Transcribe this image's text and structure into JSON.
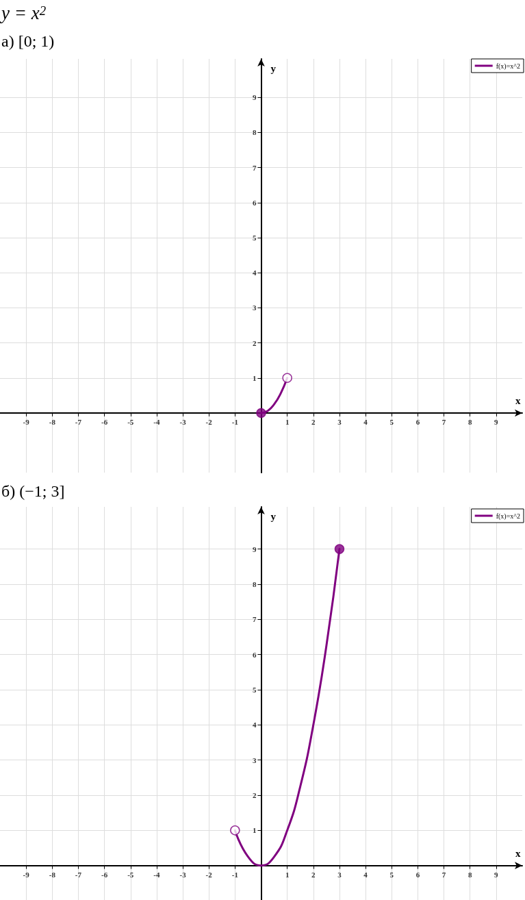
{
  "chart_data": [
    {
      "type": "line",
      "title": "y = x$^{2}$",
      "subtitle": "а) [0; 1)",
      "xlabel": "x",
      "ylabel": "y",
      "xlim": [
        -10,
        10
      ],
      "ylim": [
        -1.7,
        10.1
      ],
      "xticks": [
        -9,
        -8,
        -7,
        -6,
        -5,
        -4,
        -3,
        -2,
        -1,
        1,
        2,
        3,
        4,
        5,
        6,
        7,
        8,
        9
      ],
      "yticks": [
        1,
        2,
        3,
        4,
        5,
        6,
        7,
        8,
        9
      ],
      "grid": true,
      "legend": "top right",
      "line_style": "solid",
      "series": [
        {
          "type": "line",
          "name": "f(x)=x^2",
          "color": "#800080",
          "marker": "none",
          "x": [
            0,
            0.25,
            0.5,
            0.75,
            1
          ],
          "values": [
            0,
            0.06,
            0.25,
            0.56,
            1
          ]
        },
        {
          "type": "scatter",
          "color": "#800080",
          "marker": "circle",
          "x": [
            0
          ],
          "values": [
            0
          ]
        },
        {
          "type": "scatter",
          "color": "#ffffff",
          "marker": "circle",
          "x": [
            1
          ],
          "values": [
            1
          ]
        }
      ]
    },
    {
      "type": "line",
      "title": "б) (−1; 3]",
      "xlabel": "x",
      "ylabel": "y",
      "xlim": [
        -10,
        10
      ],
      "ylim": [
        -1,
        10.2
      ],
      "xticks": [
        -9,
        -8,
        -7,
        -6,
        -5,
        -4,
        -3,
        -2,
        -1,
        1,
        2,
        3,
        4,
        5,
        6,
        7,
        8,
        9
      ],
      "yticks": [
        1,
        2,
        3,
        4,
        5,
        6,
        7,
        8,
        9
      ],
      "grid": true,
      "legend": "top right",
      "line_style": "solid",
      "series": [
        {
          "type": "line",
          "name": "f(x)=x^2",
          "color": "#800080",
          "marker": "none",
          "x": [
            -1,
            -0.5,
            0,
            0.5,
            1,
            1.5,
            2,
            2.5,
            3
          ],
          "values": [
            1,
            0.25,
            0,
            0.25,
            1,
            2.25,
            4,
            6.25,
            9
          ]
        },
        {
          "type": "scatter",
          "color": "#ffffff",
          "marker": "circle",
          "x": [
            -1
          ],
          "values": [
            1
          ]
        },
        {
          "type": "scatter",
          "color": "#800080",
          "marker": "circle",
          "x": [
            3
          ],
          "values": [
            9
          ]
        }
      ]
    }
  ]
}
